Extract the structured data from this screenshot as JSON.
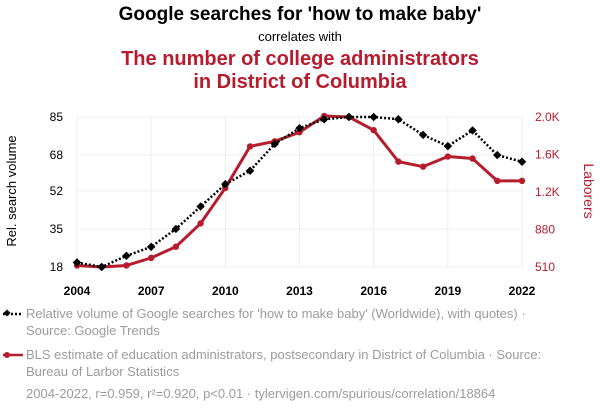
{
  "header": {
    "title": "Google searches for 'how to make baby'",
    "subtitle": "correlates with",
    "title2_line1": "The number of college administrators",
    "title2_line2": "in District of Columbia"
  },
  "colors": {
    "series1": "#000000",
    "series2": "#b71c2e",
    "legend_text": "#9c9c9c"
  },
  "legend": {
    "item1": "Relative volume of Google searches for 'how to make baby' (Worldwide), with quotes) · Source: Google Trends",
    "item2": "BLS estimate of education administrators, postsecondary in District of Columbia · Source: Bureau of Larbor Statistics"
  },
  "footer": "2004-2022, r=0.959, r²=0.920, p<0.01 · tylervigen.com/spurious/correlation/18864",
  "chart_data": {
    "type": "line",
    "x": [
      2004,
      2005,
      2006,
      2007,
      2008,
      2009,
      2010,
      2011,
      2012,
      2013,
      2014,
      2015,
      2016,
      2017,
      2018,
      2019,
      2020,
      2021,
      2022
    ],
    "x_ticks": [
      "2004",
      "2007",
      "2010",
      "2013",
      "2016",
      "2019",
      "2022"
    ],
    "x_tick_values": [
      2004,
      2007,
      2010,
      2013,
      2016,
      2019,
      2022
    ],
    "xlim": [
      2004,
      2022
    ],
    "ylabel": "Rel. search volume",
    "y_ticks": [
      "18",
      "35",
      "52",
      "68",
      "85"
    ],
    "y_tick_values": [
      18,
      35,
      52,
      68,
      85
    ],
    "ylim": [
      18,
      85
    ],
    "y2label": "Laborers",
    "y2_ticks": [
      "510",
      "880",
      "1.2K",
      "1.6K",
      "2.0K"
    ],
    "y2_tick_values": [
      510,
      880,
      1250,
      1620,
      1990
    ],
    "y2lim": [
      510,
      1990
    ],
    "series": [
      {
        "name": "Relative volume of Google searches for 'how to make baby' (Worldwide), with quotes)",
        "axis": "left",
        "style": "dotted-diamond",
        "values": [
          20,
          18,
          23,
          27,
          35,
          45,
          55,
          61,
          73,
          80,
          84,
          85,
          85,
          84,
          77,
          72,
          79,
          68,
          65
        ]
      },
      {
        "name": "BLS estimate of education administrators, postsecondary in District of Columbia",
        "axis": "right",
        "style": "solid-circle",
        "values": [
          525,
          510,
          525,
          600,
          710,
          940,
          1290,
          1700,
          1750,
          1840,
          2000,
          1990,
          1860,
          1550,
          1500,
          1600,
          1580,
          1360,
          1360
        ]
      }
    ]
  }
}
